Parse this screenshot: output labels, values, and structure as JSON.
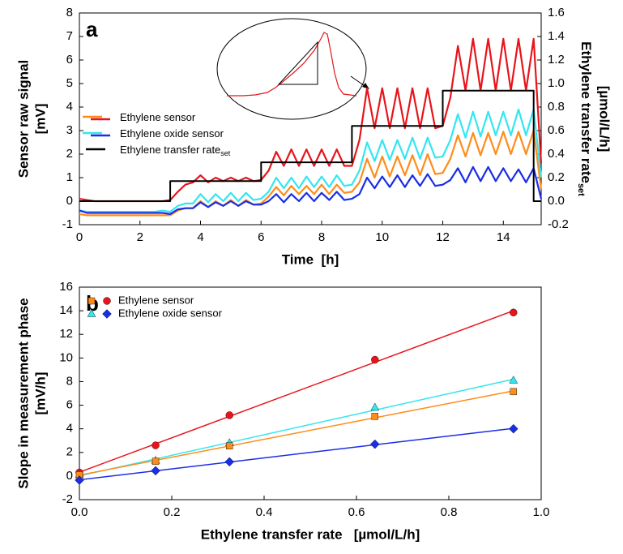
{
  "chart_data": [
    {
      "type": "line",
      "panel": "a",
      "xlabel": "Time  [h]",
      "ylabel": "Sensor raw signal",
      "ylabel2": "[mV]",
      "y2label": "Ethylene transfer rate",
      "y2label_sub": "set",
      "y2label2": "[µmol/L/h]",
      "xlim": [
        0,
        15.25
      ],
      "xticks": [
        0,
        2,
        4,
        6,
        8,
        10,
        12,
        14
      ],
      "ylim": [
        -1,
        8
      ],
      "yticks": [
        -1,
        0,
        1,
        2,
        3,
        4,
        5,
        6,
        7,
        8
      ],
      "y2lim": [
        -0.2,
        1.6
      ],
      "y2ticks": [
        -0.2,
        {
          "value": 0,
          "label": "0.0"
        },
        0.2,
        0.4,
        0.6,
        0.8,
        {
          "value": 1,
          "label": "1.0"
        },
        1.2,
        1.4,
        1.6
      ],
      "x": [
        0,
        0.25,
        0.5,
        0.75,
        1,
        1.25,
        1.5,
        1.75,
        2,
        2.25,
        2.5,
        2.75,
        3,
        3.25,
        3.5,
        3.75,
        4,
        4.25,
        4.5,
        4.75,
        5,
        5.25,
        5.5,
        5.75,
        6,
        6.25,
        6.5,
        6.75,
        7,
        7.25,
        7.5,
        7.75,
        8,
        8.25,
        8.5,
        8.75,
        9,
        9.25,
        9.5,
        9.75,
        10,
        10.25,
        10.5,
        10.75,
        11,
        11.25,
        11.5,
        11.75,
        12,
        12.25,
        12.5,
        12.75,
        13,
        13.25,
        13.5,
        13.75,
        14,
        14.25,
        14.5,
        14.75,
        15,
        15.25
      ],
      "legend": [
        {
          "name": "Ethylene sensor",
          "colors": [
            "#ff8c1a",
            "#e8141a"
          ]
        },
        {
          "name": "Ethylene oxide sensor",
          "colors": [
            "#33e6f0",
            "#1a2ee6"
          ]
        },
        {
          "name": "Ethylene transfer rate",
          "sub": "set",
          "colors": [
            "#000000"
          ]
        }
      ],
      "series": [
        {
          "color": "#ff8c1a",
          "values": [
            -0.55,
            -0.6,
            -0.6,
            -0.6,
            -0.6,
            -0.6,
            -0.6,
            -0.6,
            -0.6,
            -0.6,
            -0.6,
            -0.6,
            -0.6,
            -0.4,
            -0.3,
            -0.3,
            0,
            -0.25,
            0,
            -0.2,
            0.05,
            -0.2,
            0.05,
            -0.15,
            -0.1,
            0.2,
            0.6,
            0.25,
            0.65,
            0.3,
            0.65,
            0.3,
            0.7,
            0.3,
            0.7,
            0.35,
            0.4,
            0.8,
            1.8,
            1,
            1.9,
            1.05,
            1.9,
            1.1,
            1.95,
            1.1,
            2,
            1.15,
            1.2,
            1.8,
            2.8,
            1.9,
            2.9,
            1.95,
            2.9,
            2,
            2.95,
            2,
            2.95,
            2,
            3,
            0.5
          ]
        },
        {
          "color": "#33e6f0",
          "values": [
            -0.4,
            -0.45,
            -0.45,
            -0.45,
            -0.45,
            -0.45,
            -0.45,
            -0.45,
            -0.45,
            -0.45,
            -0.45,
            -0.4,
            -0.45,
            -0.2,
            -0.1,
            -0.1,
            0.3,
            -0.05,
            0.3,
            0,
            0.35,
            0,
            0.35,
            0.05,
            0.1,
            0.4,
            1,
            0.55,
            1,
            0.55,
            1.05,
            0.6,
            1.05,
            0.6,
            1.1,
            0.65,
            0.7,
            1.3,
            2.5,
            1.7,
            2.6,
            1.75,
            2.6,
            1.8,
            2.7,
            1.8,
            2.7,
            1.85,
            1.9,
            2.6,
            3.7,
            2.7,
            3.8,
            2.75,
            3.8,
            2.8,
            3.8,
            2.8,
            3.9,
            2.8,
            3.9,
            1
          ]
        },
        {
          "color": "#1a2ee6",
          "values": [
            -0.4,
            -0.5,
            -0.5,
            -0.5,
            -0.5,
            -0.5,
            -0.5,
            -0.5,
            -0.5,
            -0.5,
            -0.5,
            -0.5,
            -0.55,
            -0.35,
            -0.3,
            -0.3,
            -0.05,
            -0.25,
            -0.05,
            -0.2,
            0,
            -0.2,
            0,
            -0.15,
            -0.15,
            0,
            0.3,
            -0.05,
            0.3,
            0,
            0.35,
            0,
            0.35,
            0.05,
            0.4,
            0.05,
            0.1,
            0.3,
            1,
            0.55,
            1.05,
            0.6,
            1.1,
            0.6,
            1.1,
            0.65,
            1.15,
            0.65,
            0.7,
            0.9,
            1.4,
            0.8,
            1.45,
            0.85,
            1.45,
            0.85,
            1.4,
            0.85,
            1.35,
            0.8,
            1.4,
            0.1
          ]
        },
        {
          "color": "#e8141a",
          "values": [
            0.1,
            0.05,
            0,
            0,
            0,
            0,
            0,
            0,
            0,
            0,
            0,
            0,
            0.05,
            0.4,
            0.7,
            0.8,
            1.1,
            0.8,
            1,
            0.85,
            1,
            0.85,
            1,
            0.85,
            0.9,
            1.3,
            2.1,
            1.5,
            2.2,
            1.5,
            2.2,
            1.5,
            2.2,
            1.5,
            2.2,
            1.5,
            1.5,
            2.6,
            4.8,
            3.1,
            4.8,
            3.1,
            4.8,
            3.1,
            4.8,
            3.1,
            4.8,
            3.1,
            3.2,
            4.4,
            6.6,
            4.7,
            6.9,
            4.7,
            6.9,
            4.7,
            6.9,
            4.7,
            6.9,
            4.7,
            6.9,
            1.6
          ]
        },
        {
          "color": "#000000",
          "axis": "y2",
          "x": [
            0,
            3,
            3,
            6,
            6,
            9,
            9,
            12,
            12,
            15,
            15,
            15.25
          ],
          "values": [
            0,
            0,
            0.17,
            0.17,
            0.33,
            0.33,
            0.64,
            0.64,
            0.94,
            0.94,
            0,
            0
          ]
        }
      ]
    },
    {
      "type": "scatter",
      "panel": "b",
      "xlabel": "Ethylene transfer rate   [µmol/L/h]",
      "ylabel": "Slope in measurement phase",
      "ylabel2": "[mV/h]",
      "xlim": [
        0,
        1
      ],
      "xticks": [
        {
          "value": 0,
          "label": "0.0"
        },
        0.2,
        0.4,
        0.6,
        0.8,
        {
          "value": 1,
          "label": "1.0"
        }
      ],
      "ylim": [
        -2,
        16
      ],
      "yticks": [
        -2,
        0,
        2,
        4,
        6,
        8,
        10,
        12,
        14,
        16
      ],
      "x": [
        0,
        0.165,
        0.325,
        0.64,
        0.94
      ],
      "legend": [
        {
          "name": "Ethylene sensor",
          "markers": [
            2,
            0
          ]
        },
        {
          "name": "Ethylene oxide sensor",
          "markers": [
            1,
            3
          ]
        }
      ],
      "series": [
        {
          "color": "#e8141a",
          "marker": "circle",
          "values": [
            0.3,
            2.6,
            5.15,
            9.85,
            13.85
          ]
        },
        {
          "color": "#33e6f0",
          "marker": "triangle",
          "values": [
            0.1,
            1.3,
            2.8,
            5.8,
            8.1
          ]
        },
        {
          "color": "#ff8c1a",
          "marker": "square",
          "values": [
            0.1,
            1.25,
            2.55,
            5.05,
            7.15
          ]
        },
        {
          "color": "#1a2ee6",
          "marker": "diamond",
          "values": [
            -0.35,
            0.45,
            1.2,
            2.7,
            4.0
          ]
        }
      ]
    }
  ]
}
